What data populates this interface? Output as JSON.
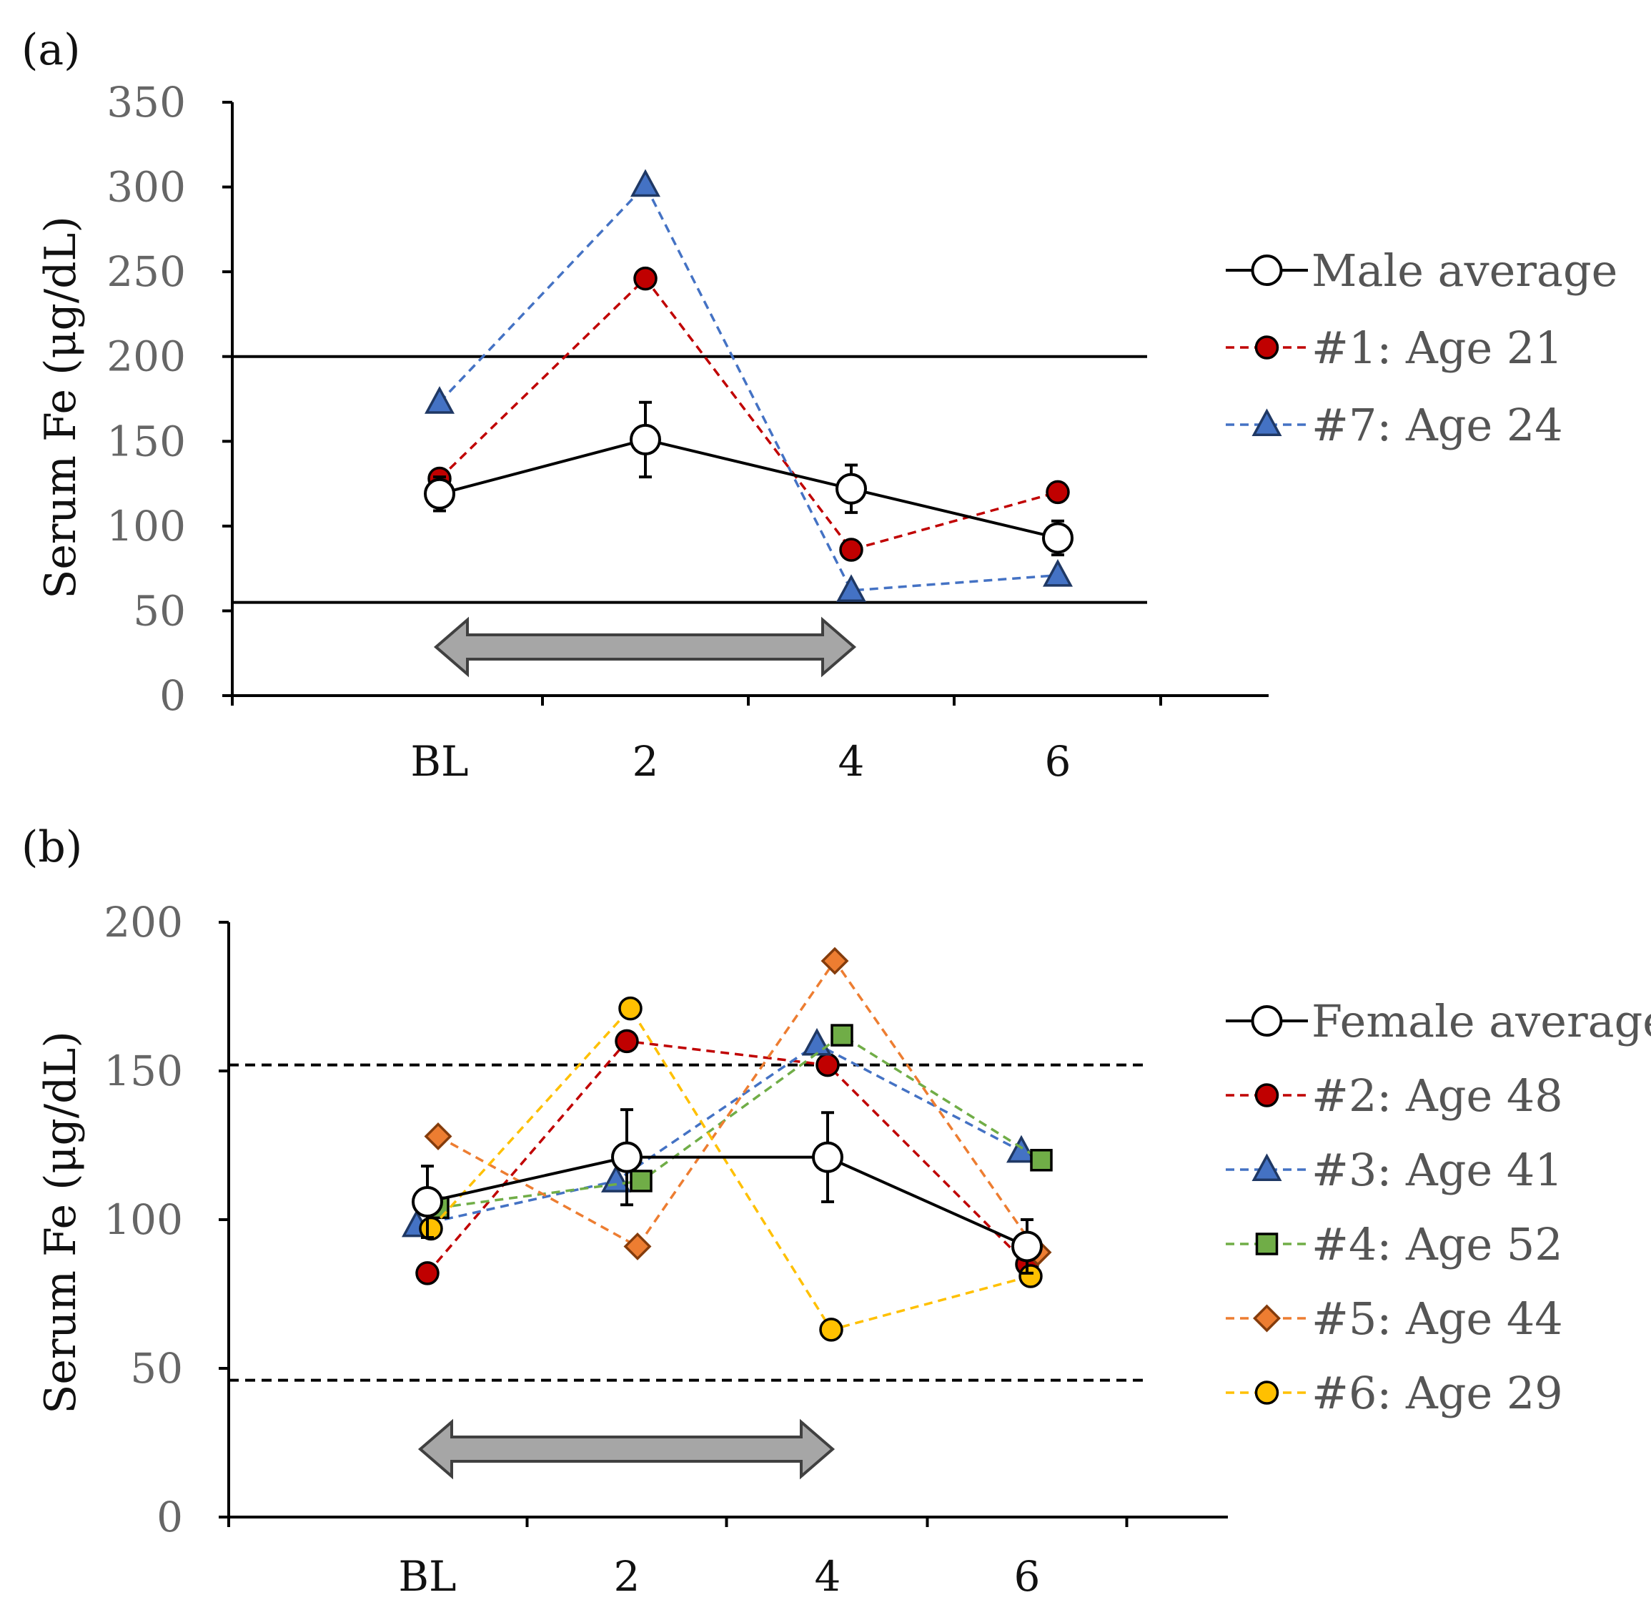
{
  "chart_data": [
    {
      "type": "line",
      "panel_label": "(a)",
      "ylabel": "Serum Fe (μg/dL)",
      "xlabel": "",
      "categories": [
        "BL",
        "2",
        "4",
        "6"
      ],
      "ylim": [
        0,
        350
      ],
      "yticks": [
        0,
        50,
        100,
        150,
        200,
        250,
        300,
        350
      ],
      "reference_lines": [
        {
          "value": 200,
          "style": "solid"
        },
        {
          "value": 55,
          "style": "solid"
        }
      ],
      "arrow_span": [
        "BL",
        "4"
      ],
      "series": [
        {
          "name": "Male average",
          "color": "#000000",
          "marker": "circle-open",
          "dash": false,
          "values": [
            119,
            151,
            122,
            93
          ],
          "errors": [
            10,
            22,
            14,
            10
          ]
        },
        {
          "name": "#1: Age 21",
          "color": "#c00000",
          "marker": "circle",
          "dash": true,
          "values": [
            128,
            246,
            86,
            120
          ]
        },
        {
          "name": "#7: Age 24",
          "color": "#4472c4",
          "marker": "triangle",
          "dash": true,
          "values": [
            173,
            301,
            62,
            71
          ]
        }
      ]
    },
    {
      "type": "line",
      "panel_label": "(b)",
      "ylabel": "Serum Fe (μg/dL)",
      "xlabel": "",
      "categories": [
        "BL",
        "2",
        "4",
        "6"
      ],
      "ylim": [
        0,
        200
      ],
      "yticks": [
        0,
        50,
        100,
        150,
        200
      ],
      "reference_lines": [
        {
          "value": 152,
          "style": "dashed"
        },
        {
          "value": 46,
          "style": "dashed"
        }
      ],
      "arrow_span": [
        "BL",
        "4"
      ],
      "series": [
        {
          "name": "Female average",
          "color": "#000000",
          "marker": "circle-open",
          "dash": false,
          "values": [
            106,
            121,
            121,
            91
          ],
          "errors": [
            12,
            16,
            15,
            9
          ]
        },
        {
          "name": "#2: Age 48",
          "color": "#c00000",
          "marker": "circle",
          "dash": true,
          "values": [
            82,
            160,
            152,
            85
          ]
        },
        {
          "name": "#3: Age 41",
          "color": "#4472c4",
          "marker": "triangle",
          "dash": true,
          "values": [
            98,
            113,
            159,
            123
          ]
        },
        {
          "name": "#4: Age 52",
          "color": "#70ad47",
          "marker": "square",
          "dash": true,
          "values": [
            104,
            113,
            162,
            120
          ]
        },
        {
          "name": "#5: Age 44",
          "color": "#ed7d31",
          "marker": "diamond",
          "dash": true,
          "values": [
            128,
            91,
            187,
            89
          ]
        },
        {
          "name": "#6: Age 29",
          "color": "#ffc000",
          "marker": "circle",
          "dash": true,
          "values": [
            97,
            171,
            63,
            81
          ]
        }
      ]
    }
  ]
}
